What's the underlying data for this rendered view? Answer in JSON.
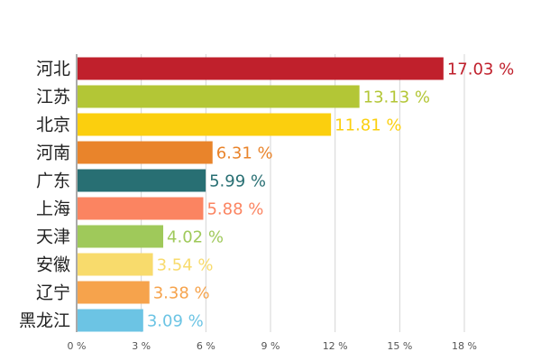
{
  "chart_data": {
    "type": "bar",
    "orientation": "horizontal",
    "categories": [
      "河北",
      "江苏",
      "北京",
      "河南",
      "广东",
      "上海",
      "天津",
      "安徽",
      "辽宁",
      "黑龙江"
    ],
    "values": [
      17.03,
      13.13,
      11.81,
      6.31,
      5.99,
      5.88,
      4.02,
      3.54,
      3.38,
      3.09
    ],
    "value_labels": [
      "17.03 %",
      "13.13 %",
      "11.81 %",
      "6.31 %",
      "5.99 %",
      "5.88 %",
      "4.02 %",
      "3.54 %",
      "3.38 %",
      "3.09 %"
    ],
    "colors": [
      "#c0202c",
      "#b3c636",
      "#fbcf0e",
      "#e9842b",
      "#286f73",
      "#fb8461",
      "#9fc95a",
      "#f8db6c",
      "#f6a34c",
      "#6cc4e4"
    ],
    "xlim": [
      0,
      18
    ],
    "x_ticks": [
      0,
      3,
      6,
      9,
      12,
      15,
      18
    ],
    "x_tick_labels": [
      "0 %",
      "3 %",
      "6 %",
      "9 %",
      "12 %",
      "15 %",
      "18 %"
    ],
    "grid": true,
    "legend": "none"
  }
}
